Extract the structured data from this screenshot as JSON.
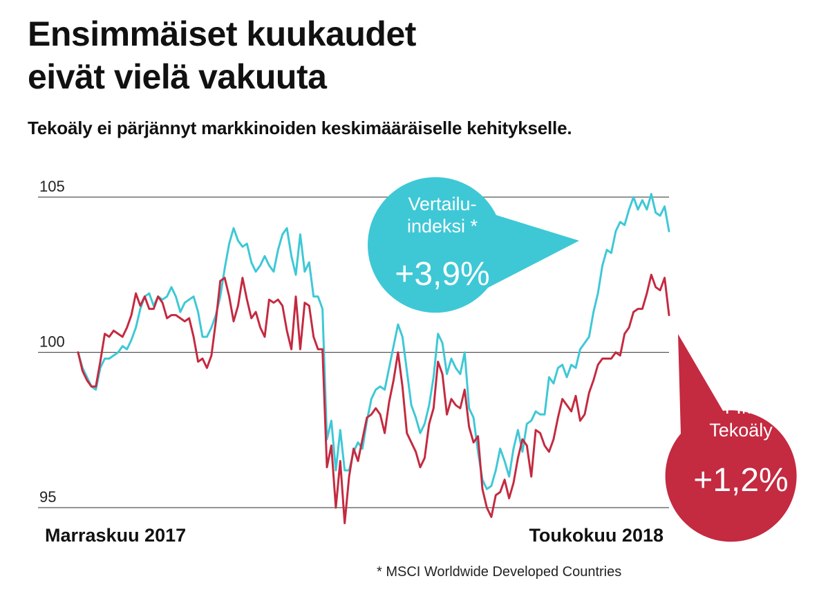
{
  "header": {
    "title_line1": "Ensimmäiset kuukaudet",
    "title_line2": "eivät vielä vakuuta",
    "subtitle": "Tekoäly ei pärjännyt markkinoiden keskimääräiselle kehitykselle."
  },
  "footnote": "* MSCI Worldwide Developed Countries",
  "colors": {
    "index": "#3ec8d6",
    "fund": "#c42a40",
    "grid": "#555555"
  },
  "chart_data": {
    "type": "line",
    "title": "Ensimmäiset kuukaudet eivät vielä vakuuta",
    "subtitle": "Tekoäly ei pärjännyt markkinoiden keskimääräiselle kehitykselle.",
    "xlabel": "",
    "ylabel": "",
    "x_start_label": "Marraskuu 2017",
    "x_end_label": "Toukokuu 2018",
    "ylim": [
      95,
      105
    ],
    "yticks": [
      95,
      100,
      105
    ],
    "grid": "horizontal",
    "legend": "callout bubbles",
    "annotations": [
      {
        "series": "Vertailuindeksi",
        "lines": [
          "Vertailu-",
          "indeksi *"
        ],
        "value": "+3,9%"
      },
      {
        "series": "FIM Tekoäly",
        "lines": [
          "FIM",
          "Tekoäly"
        ],
        "value": "+1,2%"
      }
    ],
    "series": [
      {
        "name": "Vertailuindeksi",
        "color": "#3ec8d6",
        "values": [
          100.0,
          99.5,
          99.2,
          98.9,
          98.8,
          99.5,
          99.8,
          99.8,
          99.9,
          100.0,
          100.2,
          100.1,
          100.4,
          100.8,
          101.4,
          101.8,
          101.9,
          101.5,
          101.8,
          101.7,
          101.8,
          102.1,
          101.8,
          101.3,
          101.6,
          101.7,
          101.8,
          101.3,
          100.5,
          100.5,
          100.8,
          101.2,
          101.8,
          102.7,
          103.5,
          104.0,
          103.6,
          103.4,
          103.5,
          102.9,
          102.6,
          102.8,
          103.1,
          102.8,
          102.6,
          103.3,
          103.8,
          104.0,
          103.1,
          102.5,
          103.8,
          102.6,
          102.9,
          101.8,
          101.8,
          101.4,
          97.2,
          97.8,
          96.2,
          97.5,
          96.2,
          96.2,
          96.8,
          97.1,
          96.9,
          97.8,
          98.5,
          98.8,
          98.9,
          98.8,
          99.5,
          100.2,
          100.9,
          100.5,
          99.4,
          98.3,
          97.9,
          97.4,
          97.7,
          98.3,
          99.2,
          100.6,
          100.3,
          99.3,
          99.8,
          99.5,
          99.3,
          100.0,
          98.2,
          97.9,
          96.8,
          95.9,
          95.6,
          95.7,
          96.2,
          96.9,
          96.5,
          96.0,
          96.9,
          97.5,
          96.8,
          97.7,
          97.8,
          98.1,
          98.0,
          98.0,
          99.2,
          99.0,
          99.5,
          99.6,
          99.2,
          99.6,
          99.5,
          100.1,
          100.3,
          100.5,
          101.3,
          101.9,
          102.8,
          103.3,
          103.2,
          103.9,
          104.2,
          104.1,
          104.6,
          105.0,
          104.6,
          104.9,
          104.6,
          105.1,
          104.5,
          104.4,
          104.7,
          103.9
        ],
        "end_label": "+3,9%"
      },
      {
        "name": "FIM Tekoäly",
        "color": "#c42a40",
        "values": [
          100.0,
          99.4,
          99.1,
          98.9,
          98.9,
          99.7,
          100.6,
          100.5,
          100.7,
          100.6,
          100.5,
          100.8,
          101.2,
          101.9,
          101.5,
          101.8,
          101.4,
          101.4,
          101.8,
          101.6,
          101.1,
          101.2,
          101.2,
          101.1,
          101.0,
          101.1,
          100.5,
          99.7,
          99.8,
          99.5,
          99.9,
          101.0,
          102.3,
          102.4,
          101.8,
          101.0,
          101.5,
          102.4,
          101.7,
          101.1,
          101.3,
          100.8,
          100.5,
          101.7,
          101.6,
          101.7,
          101.5,
          100.7,
          100.1,
          101.8,
          100.1,
          101.6,
          101.5,
          100.5,
          100.1,
          100.1,
          96.3,
          97.0,
          95.0,
          96.5,
          94.5,
          96.0,
          96.9,
          96.5,
          97.2,
          97.9,
          98.0,
          98.2,
          98.0,
          97.4,
          98.4,
          99.1,
          100.0,
          98.9,
          97.4,
          97.1,
          96.8,
          96.3,
          96.6,
          97.7,
          98.2,
          99.7,
          99.3,
          98.0,
          98.5,
          98.3,
          98.2,
          98.8,
          97.6,
          97.1,
          97.3,
          95.6,
          95.0,
          94.7,
          95.4,
          95.5,
          95.9,
          95.3,
          95.8,
          96.6,
          97.2,
          97.0,
          96.0,
          97.5,
          97.4,
          97.0,
          96.8,
          97.2,
          97.9,
          98.5,
          98.3,
          98.1,
          98.6,
          97.8,
          98.0,
          98.7,
          99.1,
          99.6,
          99.8,
          99.8,
          99.8,
          100.0,
          99.9,
          100.6,
          100.8,
          101.3,
          101.4,
          101.4,
          101.9,
          102.5,
          102.1,
          102.0,
          102.4,
          101.2
        ]
      }
    ]
  }
}
